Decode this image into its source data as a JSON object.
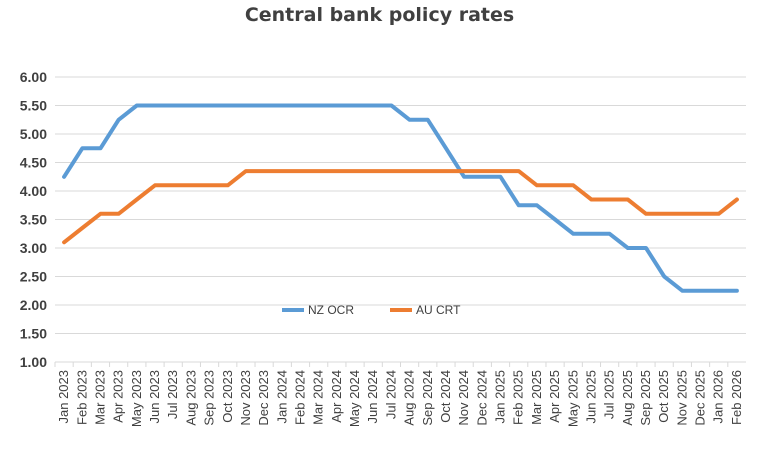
{
  "chart_data": {
    "type": "line",
    "title": "Central bank policy rates",
    "xlabel": "",
    "ylabel": "",
    "ylim": [
      1.0,
      6.0
    ],
    "yticks": [
      "1.00",
      "1.50",
      "2.00",
      "2.50",
      "3.00",
      "3.50",
      "4.00",
      "4.50",
      "5.00",
      "5.50",
      "6.00"
    ],
    "grid": true,
    "legend_position": "center",
    "categories": [
      "Jan 2023",
      "Feb 2023",
      "Mar 2023",
      "Apr 2023",
      "May 2023",
      "Jun 2023",
      "Jul 2023",
      "Aug 2023",
      "Sep 2023",
      "Oct 2023",
      "Nov 2023",
      "Dec 2023",
      "Jan 2024",
      "Feb 2024",
      "Mar 2024",
      "Apr 2024",
      "May 2024",
      "Jun 2024",
      "Jul 2024",
      "Aug 2024",
      "Sep 2024",
      "Oct 2024",
      "Nov 2024",
      "Dec 2024",
      "Jan 2025",
      "Feb 2025",
      "Mar 2025",
      "Apr 2025",
      "May 2025",
      "Jun 2025",
      "Jul 2025",
      "Aug 2025",
      "Sep 2025",
      "Oct 2025",
      "Nov 2025",
      "Dec 2025",
      "Jan 2026",
      "Feb 2026"
    ],
    "series": [
      {
        "name": "NZ OCR",
        "color": "#5b9bd5",
        "values": [
          4.25,
          4.75,
          4.75,
          5.25,
          5.5,
          5.5,
          5.5,
          5.5,
          5.5,
          5.5,
          5.5,
          5.5,
          5.5,
          5.5,
          5.5,
          5.5,
          5.5,
          5.5,
          5.5,
          5.25,
          5.25,
          4.75,
          4.25,
          4.25,
          4.25,
          3.75,
          3.75,
          3.5,
          3.25,
          3.25,
          3.25,
          3.0,
          3.0,
          2.5,
          2.25,
          2.25,
          2.25,
          2.25
        ]
      },
      {
        "name": "AU CRT",
        "color": "#ed7d31",
        "values": [
          3.1,
          3.35,
          3.6,
          3.6,
          3.85,
          4.1,
          4.1,
          4.1,
          4.1,
          4.1,
          4.35,
          4.35,
          4.35,
          4.35,
          4.35,
          4.35,
          4.35,
          4.35,
          4.35,
          4.35,
          4.35,
          4.35,
          4.35,
          4.35,
          4.35,
          4.35,
          4.1,
          4.1,
          4.1,
          3.85,
          3.85,
          3.85,
          3.6,
          3.6,
          3.6,
          3.6,
          3.6,
          3.85
        ]
      }
    ]
  }
}
